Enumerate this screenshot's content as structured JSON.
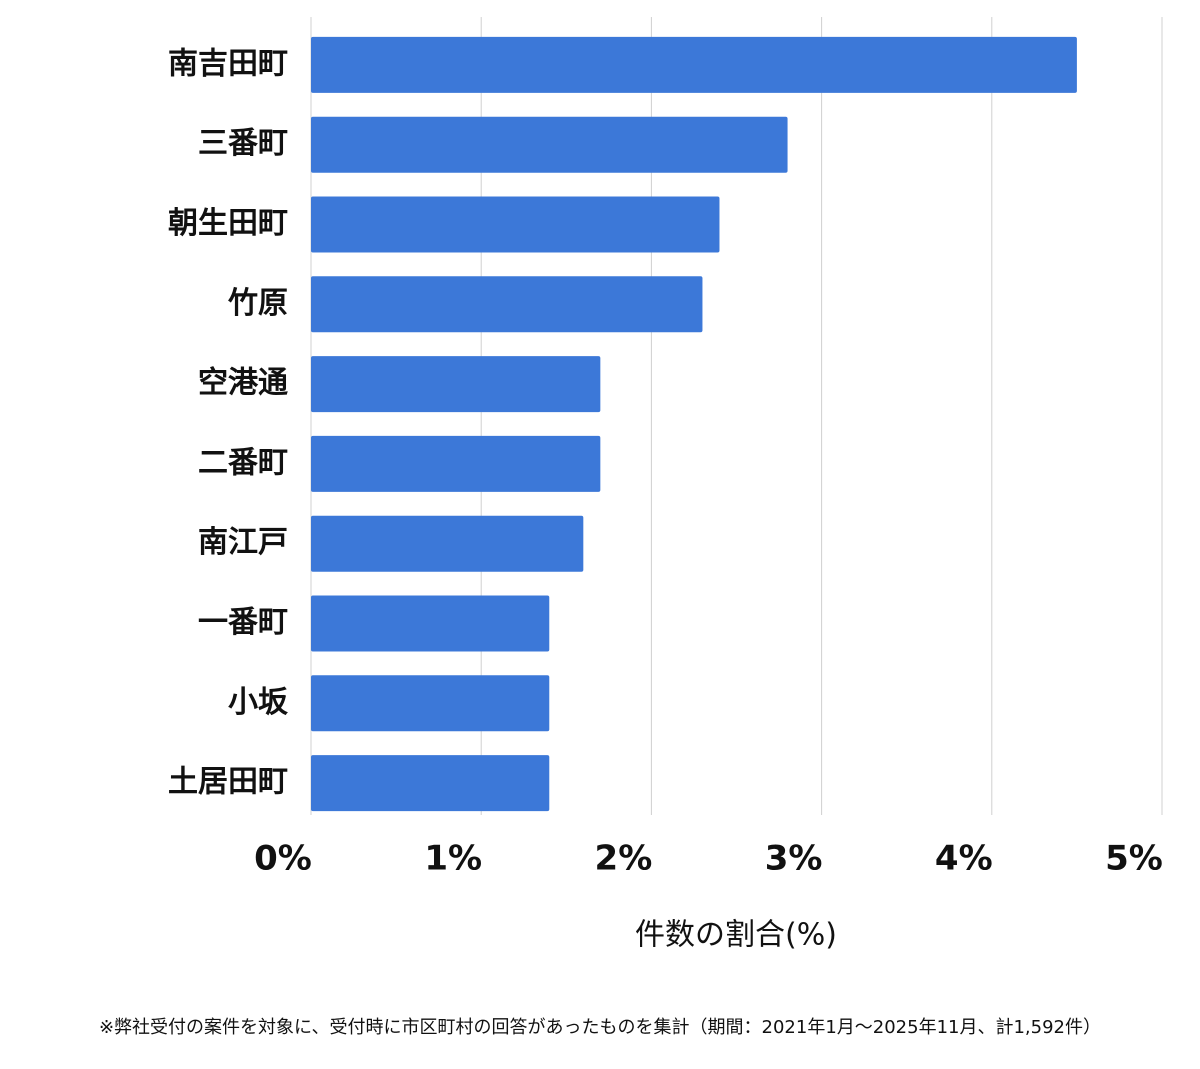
{
  "chart_data": {
    "type": "bar",
    "orientation": "horizontal",
    "categories": [
      "南吉田町",
      "三番町",
      "朝生田町",
      "竹原",
      "空港通",
      "二番町",
      "南江戸",
      "一番町",
      "小坂",
      "土居田町"
    ],
    "values": [
      4.5,
      2.8,
      2.4,
      2.3,
      1.7,
      1.7,
      1.6,
      1.4,
      1.4,
      1.4
    ],
    "color": "#3c78d8",
    "xlim": [
      0,
      5
    ],
    "xticks": [
      {
        "value": 0,
        "label": "0%"
      },
      {
        "value": 1,
        "label": "1%"
      },
      {
        "value": 2,
        "label": "2%"
      },
      {
        "value": 3,
        "label": "3%"
      },
      {
        "value": 4,
        "label": "4%"
      },
      {
        "value": 5,
        "label": "5%"
      }
    ],
    "grid": true,
    "x_label": "件数の割合(%)",
    "note": "※弊社受付の案件を対象に、受付時に市区町村の回答があったものを集計（期間：2021年1月～2025年11月、計1,592件）"
  }
}
